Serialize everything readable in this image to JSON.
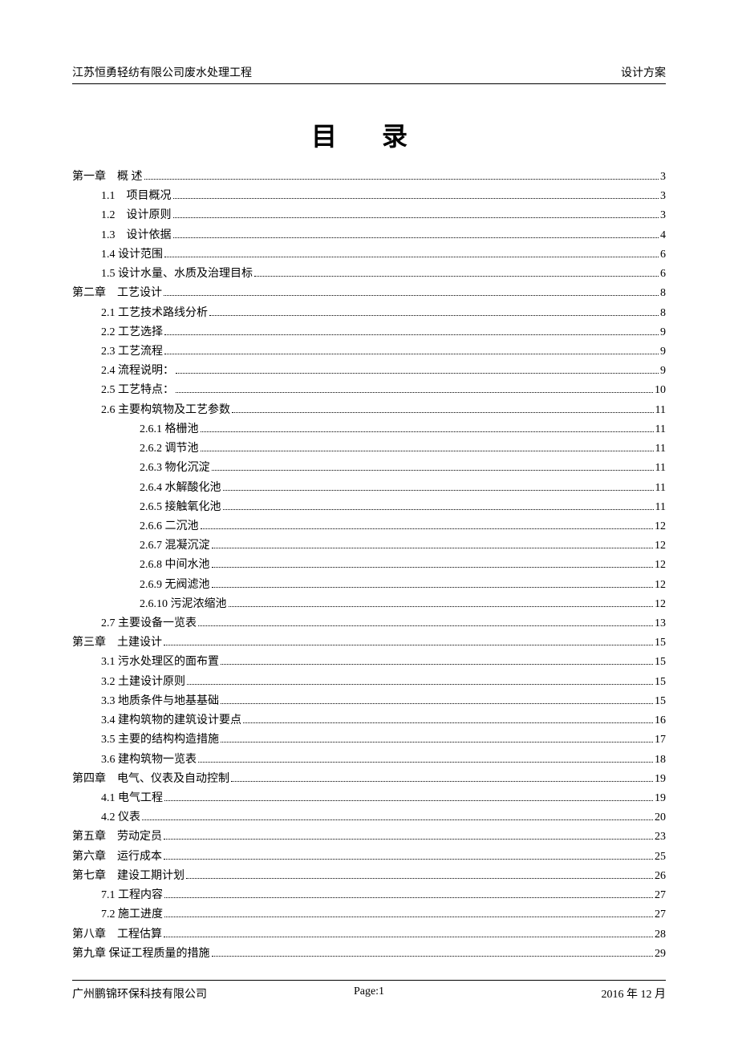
{
  "header": {
    "left": "江苏恒勇轻纺有限公司废水处理工程",
    "right": "设计方案"
  },
  "title": "目 录",
  "toc": [
    {
      "level": 0,
      "label": "第一章　概 述",
      "page": "3"
    },
    {
      "level": 1,
      "label": "1.1　项目概况",
      "page": "3"
    },
    {
      "level": 1,
      "label": "1.2　设计原则",
      "page": "3"
    },
    {
      "level": 1,
      "label": "1.3　设计依据",
      "page": "4"
    },
    {
      "level": 1,
      "label": "1.4 设计范围",
      "page": "6"
    },
    {
      "level": 1,
      "label": "1.5 设计水量、水质及治理目标",
      "page": "6"
    },
    {
      "level": 0,
      "label": "第二章　工艺设计",
      "page": "8"
    },
    {
      "level": 1,
      "label": "2.1 工艺技术路线分析",
      "page": "8"
    },
    {
      "level": 1,
      "label": "2.2 工艺选择",
      "page": "9"
    },
    {
      "level": 1,
      "label": "2.3 工艺流程",
      "page": "9"
    },
    {
      "level": 1,
      "label": "2.4 流程说明：",
      "page": "9"
    },
    {
      "level": 1,
      "label": "2.5 工艺特点：",
      "page": "10"
    },
    {
      "level": 1,
      "label": "2.6 主要构筑物及工艺参数",
      "page": "11"
    },
    {
      "level": 2,
      "label": "2.6.1 格栅池",
      "page": "11"
    },
    {
      "level": 2,
      "label": "2.6.2 调节池",
      "page": "11"
    },
    {
      "level": 2,
      "label": "2.6.3 物化沉淀",
      "page": "11"
    },
    {
      "level": 2,
      "label": "2.6.4 水解酸化池",
      "page": "11"
    },
    {
      "level": 2,
      "label": "2.6.5 接触氧化池",
      "page": "11"
    },
    {
      "level": 2,
      "label": "2.6.6 二沉池",
      "page": "12"
    },
    {
      "level": 2,
      "label": "2.6.7 混凝沉淀",
      "page": "12"
    },
    {
      "level": 2,
      "label": "2.6.8 中间水池",
      "page": "12"
    },
    {
      "level": 2,
      "label": "2.6.9 无阀滤池",
      "page": "12"
    },
    {
      "level": 2,
      "label": "2.6.10 污泥浓缩池",
      "page": "12"
    },
    {
      "level": 1,
      "label": "2.7 主要设备一览表",
      "page": "13"
    },
    {
      "level": 0,
      "label": "第三章　土建设计",
      "page": "15"
    },
    {
      "level": 1,
      "label": "3.1 污水处理区的面布置",
      "page": "15"
    },
    {
      "level": 1,
      "label": "3.2 土建设计原则",
      "page": "15"
    },
    {
      "level": 1,
      "label": "3.3 地质条件与地基基础",
      "page": "15"
    },
    {
      "level": 1,
      "label": "3.4 建构筑物的建筑设计要点",
      "page": "16"
    },
    {
      "level": 1,
      "label": "3.5 主要的结构构造措施",
      "page": "17"
    },
    {
      "level": 1,
      "label": "3.6 建构筑物一览表",
      "page": "18"
    },
    {
      "level": 0,
      "label": "第四章　电气、仪表及自动控制",
      "page": "19"
    },
    {
      "level": 1,
      "label": "4.1 电气工程",
      "page": "19"
    },
    {
      "level": 1,
      "label": "4.2 仪表",
      "page": "20"
    },
    {
      "level": 0,
      "label": "第五章　劳动定员",
      "page": "23"
    },
    {
      "level": 0,
      "label": "第六章　运行成本",
      "page": "25"
    },
    {
      "level": 0,
      "label": "第七章　建设工期计划",
      "page": "26"
    },
    {
      "level": 1,
      "label": "7.1 工程内容",
      "page": "27"
    },
    {
      "level": 1,
      "label": "7.2 施工进度",
      "page": "27"
    },
    {
      "level": 0,
      "label": "第八章　工程估算",
      "page": "28"
    },
    {
      "level": 0,
      "label": "第九章 保证工程质量的措施",
      "page": "29"
    }
  ],
  "footer": {
    "left": "广州鹏锦环保科技有限公司",
    "center": "Page:1",
    "right": "2016 年 12 月"
  }
}
